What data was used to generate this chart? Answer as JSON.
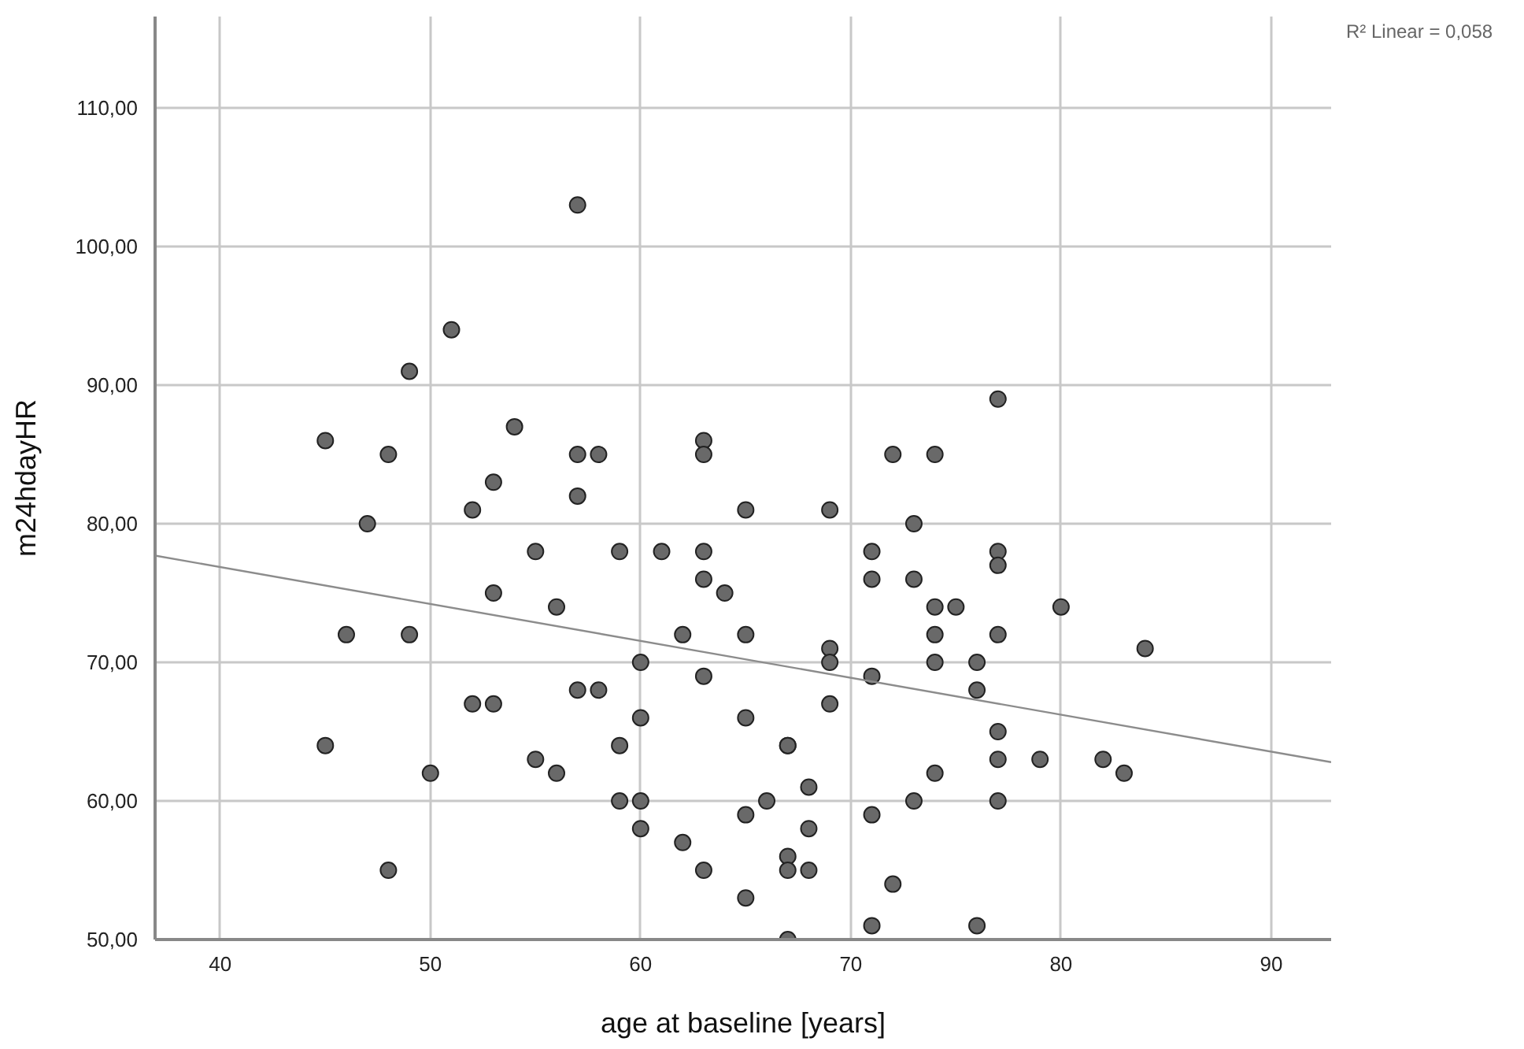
{
  "chart_data": {
    "type": "scatter",
    "xlabel": "age at baseline [years]",
    "ylabel": "m24hdayHR",
    "annotations": [
      "R² Linear = 0,058"
    ],
    "xlim": [
      36.9,
      92.85
    ],
    "ylim": [
      50,
      116.6
    ],
    "xticks": [
      40,
      50,
      60,
      70,
      80,
      90
    ],
    "yticks": [
      {
        "value": 50,
        "label": "50,00"
      },
      {
        "value": 60,
        "label": "60,00"
      },
      {
        "value": 70,
        "label": "70,00"
      },
      {
        "value": 80,
        "label": "80,00"
      },
      {
        "value": 90,
        "label": "90,00"
      },
      {
        "value": 100,
        "label": "100,00"
      },
      {
        "value": 110,
        "label": "110,00"
      }
    ],
    "grid": true,
    "series": [
      {
        "marker": "circle",
        "color": "#696969",
        "x": [
          45,
          45,
          46,
          47,
          48,
          48,
          49,
          49,
          50,
          51,
          52,
          52,
          53,
          53,
          53,
          54,
          55,
          55,
          56,
          56,
          57,
          57,
          57,
          57,
          58,
          58,
          59,
          59,
          59,
          60,
          60,
          60,
          60,
          61,
          62,
          62,
          63,
          63,
          63,
          63,
          63,
          63,
          64,
          65,
          65,
          65,
          65,
          65,
          66,
          67,
          67,
          67,
          67,
          67,
          68,
          68,
          68,
          69,
          69,
          69,
          69,
          71,
          71,
          71,
          71,
          71,
          72,
          72,
          73,
          73,
          73,
          74,
          74,
          74,
          74,
          74,
          75,
          76,
          76,
          76,
          77,
          77,
          77,
          77,
          77,
          77,
          77,
          79,
          80,
          82,
          83,
          84
        ],
        "values": [
          86,
          64,
          72,
          80,
          85,
          55,
          91,
          72,
          62,
          94,
          81,
          67,
          83,
          75,
          67,
          87,
          78,
          63,
          74,
          62,
          103,
          85,
          82,
          68,
          85,
          68,
          78,
          64,
          60,
          70,
          66,
          60,
          58,
          78,
          72,
          57,
          86,
          85,
          78,
          76,
          69,
          55,
          75,
          81,
          72,
          66,
          59,
          53,
          60,
          64,
          64,
          56,
          55,
          50,
          61,
          58,
          55,
          81,
          71,
          70,
          67,
          78,
          76,
          69,
          59,
          51,
          85,
          54,
          80,
          76,
          60,
          85,
          74,
          72,
          70,
          62,
          74,
          70,
          68,
          51,
          89,
          78,
          77,
          72,
          65,
          63,
          60,
          63,
          74,
          63,
          62,
          71
        ]
      },
      {
        "type": "line",
        "color": "#8c8c8c",
        "x": [
          36.9,
          92.85
        ],
        "values": [
          77.7,
          62.8
        ]
      }
    ]
  }
}
